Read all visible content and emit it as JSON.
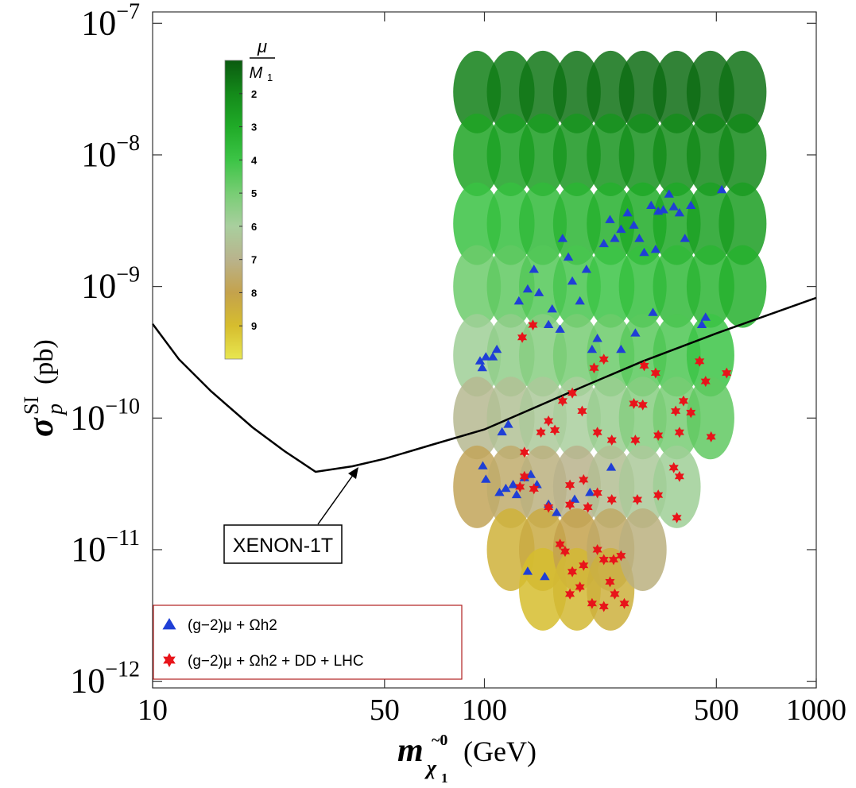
{
  "chart_data": {
    "type": "scatter",
    "x_label": {
      "symbol": "m",
      "sub": "χ",
      "sub_index": "1",
      "accent": "~0",
      "unit": "(GeV)"
    },
    "y_label": {
      "symbol": "σ",
      "sub": "p",
      "sup": "SI",
      "unit": "(pb)"
    },
    "log_x": true,
    "log_y": true,
    "grid": false,
    "legend": "lower left",
    "xlim": [
      10,
      1000
    ],
    "ylim": [
      8.9e-13,
      1.22e-07
    ],
    "xticks": [
      10,
      50,
      100,
      500,
      1000
    ],
    "yticks": [
      {
        "value": 1e-12,
        "label": "10−12"
      },
      {
        "value": 1e-11,
        "label": "10−11"
      },
      {
        "value": 1e-10,
        "label": "10−10"
      },
      {
        "value": 1e-09,
        "label": "10−9"
      },
      {
        "value": 1e-08,
        "label": "10−8"
      },
      {
        "value": 1e-07,
        "label": "10−7"
      }
    ],
    "annotation": "XENON-1T",
    "colorbar": {
      "label": {
        "num": "μ",
        "den": "M",
        "den_sub": "1"
      },
      "lim": [
        1,
        10
      ],
      "ticks": [
        2,
        3,
        4,
        5,
        6,
        7,
        8,
        9
      ],
      "colors": [
        "#0a5a10",
        "#148a1a",
        "#20ab28",
        "#3cc446",
        "#78cd74",
        "#a9cf9e",
        "#b9b38c",
        "#c4a24c",
        "#d6bd2e",
        "#e8e650"
      ]
    },
    "series": [
      {
        "type": "scatter",
        "x": [
          95,
          95,
          95,
          95,
          95,
          95,
          95,
          120,
          120,
          120,
          120,
          120,
          120,
          120,
          120,
          150,
          150,
          150,
          150,
          150,
          150,
          150,
          150,
          150,
          190,
          190,
          190,
          190,
          190,
          190,
          190,
          190,
          190,
          240,
          240,
          240,
          240,
          240,
          240,
          240,
          240,
          240,
          300,
          300,
          300,
          300,
          300,
          300,
          300,
          300,
          380,
          380,
          380,
          380,
          380,
          380,
          380,
          480,
          480,
          480,
          480,
          480,
          480,
          600,
          600,
          600,
          600
        ],
        "values": [
          3e-08,
          1e-08,
          3e-09,
          1e-09,
          3e-10,
          1e-10,
          3e-11,
          3e-08,
          1e-08,
          3e-09,
          1e-09,
          3e-10,
          1e-10,
          3e-11,
          1e-11,
          3e-08,
          1e-08,
          3e-09,
          1e-09,
          3e-10,
          1e-10,
          3e-11,
          1e-11,
          5e-12,
          3e-08,
          1e-08,
          3e-09,
          1e-09,
          3e-10,
          1e-10,
          3e-11,
          1e-11,
          5e-12,
          3e-08,
          1e-08,
          3e-09,
          1e-09,
          3e-10,
          1e-10,
          3e-11,
          1e-11,
          5e-12,
          3e-08,
          1e-08,
          3e-09,
          1e-09,
          3e-10,
          1e-10,
          3e-11,
          1e-11,
          3e-08,
          1e-08,
          3e-09,
          1e-09,
          3e-10,
          1e-10,
          3e-11,
          3e-08,
          1e-08,
          3e-09,
          1e-09,
          3e-10,
          1e-10,
          3e-08,
          1e-08,
          3e-09,
          1e-09
        ],
        "mu_over_M1": [
          1.8,
          2.8,
          3.9,
          4.8,
          5.8,
          6.8,
          7.8,
          1.7,
          2.7,
          3.8,
          4.6,
          5.5,
          6.5,
          7.5,
          8.6,
          1.6,
          2.6,
          3.6,
          4.4,
          5.3,
          6.2,
          7.2,
          8.3,
          9.0,
          1.5,
          2.4,
          3.4,
          4.2,
          5.0,
          6.0,
          7.0,
          8.0,
          8.8,
          1.5,
          2.3,
          3.2,
          4.0,
          4.8,
          5.7,
          6.6,
          7.6,
          8.5,
          1.4,
          2.2,
          3.0,
          3.8,
          4.5,
          5.3,
          6.2,
          7.2,
          1.4,
          2.1,
          2.9,
          3.6,
          4.3,
          5.0,
          5.8,
          1.4,
          2.0,
          2.7,
          3.4,
          4.0,
          4.6,
          1.5,
          2.0,
          2.6,
          3.2
        ]
      },
      {
        "type": "line",
        "color": "#000000",
        "x": [
          10,
          12,
          15,
          20,
          25,
          31,
          40,
          50,
          70,
          100,
          200,
          300,
          500,
          1000
        ],
        "values": [
          5.2e-10,
          2.8e-10,
          1.6e-10,
          8.5e-11,
          5.6e-11,
          3.9e-11,
          4.3e-11,
          4.9e-11,
          6.3e-11,
          8.2e-11,
          1.75e-10,
          2.7e-10,
          4.4e-10,
          8.2e-10
        ]
      },
      {
        "type": "scatter",
        "marker": "triangle",
        "name": "(g−2)μ + Ωh2 ",
        "color": "#1f3fd6",
        "x": [
          97,
          98.5,
          101,
          98.9,
          101,
          106,
          109,
          111,
          116,
          122,
          125,
          132,
          138,
          144,
          127,
          135,
          141,
          146,
          156,
          160,
          169,
          172,
          179,
          184,
          194,
          203,
          211,
          219,
          229,
          239,
          247,
          258,
          270,
          282,
          293,
          303,
          318,
          334,
          346,
          360,
          372,
          387,
          402,
          419,
          322,
          285,
          258,
          241,
          118,
          113,
          156,
          165,
          187,
          208,
          135,
          152,
          519,
          452,
          464,
          328
        ],
        "values": [
          2.7e-10,
          2.4e-10,
          2.9e-10,
          4.3e-11,
          3.4e-11,
          2.9e-10,
          3.3e-10,
          2.7e-11,
          2.9e-11,
          3.1e-11,
          2.6e-11,
          3.5e-11,
          3.7e-11,
          3.1e-11,
          7.7e-10,
          9.5e-10,
          1.34e-09,
          8.9e-10,
          5.1e-10,
          6.7e-10,
          4.7e-10,
          2.3e-09,
          1.66e-09,
          1.09e-09,
          7.7e-10,
          1.34e-09,
          3.3e-10,
          4e-10,
          2.1e-09,
          3.2e-09,
          2.3e-09,
          2.7e-09,
          3.6e-09,
          2.9e-09,
          2.3e-09,
          1.8e-09,
          4.1e-09,
          3.7e-09,
          3.8e-09,
          5e-09,
          4e-09,
          3.6e-09,
          2.3e-09,
          4.1e-09,
          6.3e-10,
          4.4e-10,
          3.3e-10,
          4.2e-11,
          8.9e-11,
          7.8e-11,
          2.2e-11,
          1.9e-11,
          2.4e-11,
          2.7e-11,
          6.8e-12,
          6.2e-12,
          5.4e-09,
          5.1e-10,
          5.8e-10,
          1.9e-09
        ]
      },
      {
        "type": "scatter",
        "marker": "star",
        "name": "(g−2)μ + Ωh2 + DD + LHC",
        "color": "#e8141a",
        "x": [
          130,
          140,
          214,
          229,
          303,
          328,
          445,
          464,
          537,
          398,
          377,
          300,
          282,
          184,
          172,
          197,
          156,
          163,
          148,
          132,
          219,
          242,
          285,
          334,
          387,
          419,
          482,
          132,
          128,
          141,
          156,
          181,
          199,
          219,
          242,
          181,
          205,
          289,
          334,
          372,
          387,
          380,
          169,
          175,
          219,
          229,
          245,
          258,
          184,
          194,
          181,
          211,
          229,
          239,
          247,
          264,
          199
        ],
        "values": [
          4.1e-10,
          5.1e-10,
          2.4e-10,
          2.8e-10,
          2.5e-10,
          2.2e-10,
          2.7e-10,
          1.9e-10,
          2.2e-10,
          1.35e-10,
          1.13e-10,
          1.26e-10,
          1.29e-10,
          1.55e-10,
          1.35e-10,
          1.13e-10,
          9.5e-11,
          8.1e-11,
          7.8e-11,
          5.5e-11,
          7.8e-11,
          6.8e-11,
          6.8e-11,
          7.4e-11,
          7.8e-11,
          1.1e-10,
          7.2e-11,
          3.6e-11,
          3e-11,
          2.9e-11,
          2.1e-11,
          3.1e-11,
          3.4e-11,
          2.7e-11,
          2.4e-11,
          2.2e-11,
          2.1e-11,
          2.4e-11,
          2.6e-11,
          4.2e-11,
          3.6e-11,
          1.75e-11,
          1.1e-11,
          9.7e-12,
          1e-11,
          8.4e-12,
          8.4e-12,
          9e-12,
          6.8e-12,
          5.2e-12,
          4.6e-12,
          3.9e-12,
          3.7e-12,
          5.7e-12,
          4.6e-12,
          3.9e-12,
          7.6e-12
        ]
      }
    ]
  }
}
